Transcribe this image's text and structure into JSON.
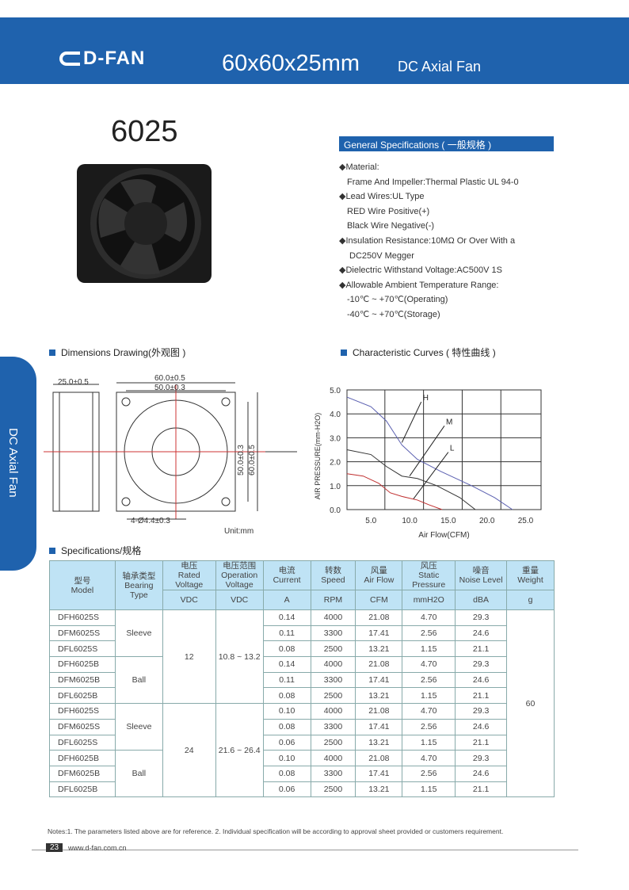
{
  "header": {
    "logo": "D-FAN",
    "title": "60x60x25mm",
    "subtitle": "DC Axial Fan",
    "brand_color": "#1f62ad"
  },
  "model": "6025",
  "general": {
    "title": "General Specifications ( 一般规格 )",
    "items": [
      "◆Material:",
      "Frame And Impeller:Thermal Plastic UL 94-0",
      "◆Lead Wires:UL Type",
      "RED Wire Positive(+)",
      "Black Wire Negative(-)",
      "◆Insulation Resistance:10MΩ  Or Over With a",
      "DC250V Megger",
      "◆Dielectric Withstand Voltage:AC500V 1S",
      "◆Allowable Ambient Temperature Range:",
      "-10℃ ~ +70℃(Operating)",
      "-40℃ ~ +70℃(Storage)"
    ]
  },
  "side_tab": "DC Axial Fan",
  "dimensions": {
    "title": "Dimensions Drawing(外观图 )",
    "labels": [
      "25.0±0.5",
      "60.0±0.5",
      "50.0±0.3",
      "50.0±0.3",
      "60.0±0.5",
      "4-Ø4.4±0.3"
    ],
    "unit": "Unit:mm"
  },
  "curves_title": "Characteristic Curves ( 特性曲线 )",
  "chart_data": {
    "type": "line",
    "xlabel": "Air Flow(CFM)",
    "ylabel": "AIR PRESSURE(mm-H2O)",
    "xlim": [
      1.9,
      27
    ],
    "ylim": [
      0,
      5
    ],
    "xticks": [
      "5.0",
      "10.0",
      "15.0",
      "20.0",
      "25.0"
    ],
    "yticks": [
      "0.0",
      "1.0",
      "2.0",
      "3.0",
      "4.0",
      "5.0"
    ],
    "grid": true,
    "series": [
      {
        "name": "H",
        "color": "#5a5fb0",
        "points": [
          [
            1.9,
            4.7
          ],
          [
            5,
            4.3
          ],
          [
            7,
            3.7
          ],
          [
            9,
            2.7
          ],
          [
            11,
            2.1
          ],
          [
            14,
            1.6
          ],
          [
            18,
            1.0
          ],
          [
            21,
            0.5
          ],
          [
            23.3,
            0
          ]
        ]
      },
      {
        "name": "M",
        "color": "#333333",
        "points": [
          [
            1.9,
            2.5
          ],
          [
            5,
            2.3
          ],
          [
            7,
            1.8
          ],
          [
            9,
            1.4
          ],
          [
            11,
            1.3
          ],
          [
            13.5,
            1.0
          ],
          [
            16.5,
            0.5
          ],
          [
            18.5,
            0
          ]
        ]
      },
      {
        "name": "L",
        "color": "#c03030",
        "points": [
          [
            1.9,
            1.5
          ],
          [
            4,
            1.4
          ],
          [
            6,
            1.1
          ],
          [
            7.5,
            0.7
          ],
          [
            9,
            0.55
          ],
          [
            11,
            0.4
          ],
          [
            12.5,
            0.2
          ],
          [
            14.2,
            0
          ]
        ]
      }
    ]
  },
  "spec_title": "Specifications/规格",
  "table": {
    "headers": [
      [
        "型号",
        "Model"
      ],
      [
        "轴承类型",
        "Bearing Type"
      ],
      [
        "电压",
        "Rated Voltage"
      ],
      [
        "电压范围",
        "Operation Voltage"
      ],
      [
        "电流",
        "Current"
      ],
      [
        "转数",
        "Speed"
      ],
      [
        "风量",
        "Air Flow"
      ],
      [
        "风压",
        "Static Pressure"
      ],
      [
        "噪音",
        "Noise Level"
      ],
      [
        "重量",
        "Weight"
      ]
    ],
    "units": [
      "VDC",
      "VDC",
      "A",
      "RPM",
      "CFM",
      "mmH2O",
      "dBA",
      "g"
    ],
    "bearing": [
      "Sleeve",
      "Ball",
      "Sleeve",
      "Ball"
    ],
    "rated": [
      "12",
      "24"
    ],
    "op": [
      "10.8 ~ 13.2",
      "21.6 ~ 26.4"
    ],
    "weight": "60",
    "rows": [
      [
        "DFH6025S",
        "0.14",
        "4000",
        "21.08",
        "4.70",
        "29.3"
      ],
      [
        "DFM6025S",
        "0.11",
        "3300",
        "17.41",
        "2.56",
        "24.6"
      ],
      [
        "DFL6025S",
        "0.08",
        "2500",
        "13.21",
        "1.15",
        "21.1"
      ],
      [
        "DFH6025B",
        "0.14",
        "4000",
        "21.08",
        "4.70",
        "29.3"
      ],
      [
        "DFM6025B",
        "0.11",
        "3300",
        "17.41",
        "2.56",
        "24.6"
      ],
      [
        "DFL6025B",
        "0.08",
        "2500",
        "13.21",
        "1.15",
        "21.1"
      ],
      [
        "DFH6025S",
        "0.10",
        "4000",
        "21.08",
        "4.70",
        "29.3"
      ],
      [
        "DFM6025S",
        "0.08",
        "3300",
        "17.41",
        "2.56",
        "24.6"
      ],
      [
        "DFL6025S",
        "0.06",
        "2500",
        "13.21",
        "1.15",
        "21.1"
      ],
      [
        "DFH6025B",
        "0.10",
        "4000",
        "21.08",
        "4.70",
        "29.3"
      ],
      [
        "DFM6025B",
        "0.08",
        "3300",
        "17.41",
        "2.56",
        "24.6"
      ],
      [
        "DFL6025B",
        "0.06",
        "2500",
        "13.21",
        "1.15",
        "21.1"
      ]
    ]
  },
  "footer": {
    "notes": "Notes:1. The parameters listed above are for reference.   2. Individual specification will be according to approval sheet provided or customers requirement.",
    "page": "23",
    "url": "www.d-fan.com.cn"
  }
}
